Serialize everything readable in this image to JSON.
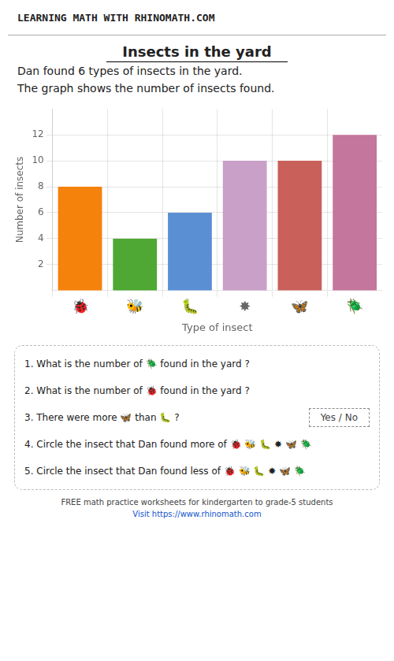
{
  "chart_data": {
    "type": "bar",
    "header": "LEARNING MATH WITH RHINOMATH.COM",
    "title": "Insects in the yard",
    "subtitle": [
      "Dan found 6 types of insects in the yard.",
      "The graph shows the number of insects found."
    ],
    "categories": [
      "🐞",
      "🐝",
      "🐛",
      "✸",
      "🦋",
      "🪲"
    ],
    "values": [
      8,
      4,
      6,
      10,
      10,
      12
    ],
    "colors": [
      "#F5820A",
      "#4EA833",
      "#5B8FD4",
      "#C9A0C8",
      "#C9605A",
      "#C4769C"
    ],
    "xlabel": "Type of insect",
    "ylabel": "Number of insects",
    "ylim": [
      0,
      14
    ],
    "yticks": [
      2,
      4,
      6,
      8,
      10,
      12
    ],
    "grid": true,
    "questions": [
      {
        "text": "1. What is the number of 🪲 found in the yard ?"
      },
      {
        "text": "2. What is the number of 🐞 found in the yard ?"
      },
      {
        "text": "3. There were more 🦋 than 🐛 ?",
        "answer": "Yes / No"
      },
      {
        "text": "4. Circle the insect that Dan found more of 🐞 🐝 🐛 ✸ 🦋 🪲"
      },
      {
        "text": "5. Circle the insect that Dan found less of 🐞 🐝 🐛 ✸ 🦋 🪲"
      }
    ],
    "footer": [
      "FREE math practice worksheets for kindergarten to grade-5 students",
      "Visit https://www.rhinomath.com"
    ]
  }
}
